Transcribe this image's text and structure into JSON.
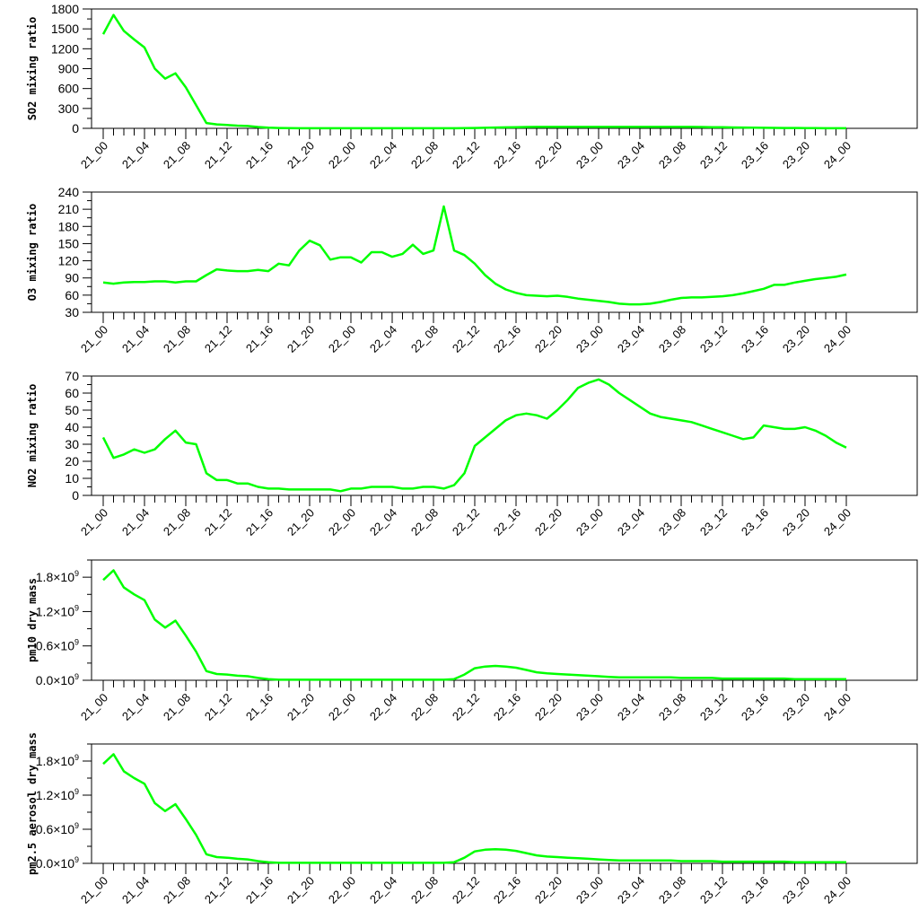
{
  "colors": {
    "line": "#00ff00",
    "axis": "#000000",
    "background": "#ffffff"
  },
  "x_tick_labels": [
    "21_00",
    "21_04",
    "21_08",
    "21_12",
    "21_16",
    "21_20",
    "22_00",
    "22_04",
    "22_08",
    "22_12",
    "22_16",
    "22_20",
    "23_00",
    "23_04",
    "23_08",
    "23_12",
    "23_16",
    "23_20",
    "24_00"
  ],
  "chart_data": [
    {
      "type": "line",
      "ylabel": "SO2 mixing ratio",
      "ylim": [
        0,
        1800
      ],
      "yticks": [
        "0",
        "300",
        "600",
        "900",
        "1200",
        "1500",
        "1800"
      ],
      "x_hours": [
        0,
        1,
        2,
        3,
        4,
        5,
        6,
        7,
        8,
        9,
        10,
        11,
        12,
        13,
        14,
        15,
        16,
        17,
        18,
        19,
        20,
        21,
        22,
        23,
        24,
        25,
        26,
        27,
        28,
        29,
        30,
        31,
        32,
        33,
        34,
        35,
        36,
        37,
        38,
        39,
        40,
        41,
        42,
        43,
        44,
        45,
        46,
        47,
        48,
        49,
        50,
        51,
        52,
        53,
        54,
        55,
        56,
        57,
        58,
        59,
        60,
        61,
        62,
        63,
        64,
        65,
        66,
        67,
        68,
        69,
        70,
        71,
        72
      ],
      "series": [
        {
          "values": [
            1420,
            1710,
            1470,
            1340,
            1220,
            900,
            750,
            830,
            620,
            350,
            80,
            60,
            50,
            40,
            35,
            20,
            10,
            5,
            3,
            2,
            2,
            2,
            2,
            2,
            2,
            2,
            2,
            2,
            2,
            2,
            2,
            2,
            2,
            2,
            2,
            3,
            5,
            8,
            12,
            15,
            18,
            20,
            22,
            22,
            22,
            22,
            22,
            22,
            22,
            22,
            22,
            22,
            22,
            22,
            22,
            22,
            22,
            22,
            20,
            18,
            16,
            14,
            12,
            10,
            8,
            7,
            6,
            5,
            4,
            3,
            2,
            2,
            2
          ]
        }
      ]
    },
    {
      "type": "line",
      "ylabel": "O3 mixing ratio",
      "ylim": [
        30,
        240
      ],
      "yticks": [
        "30",
        "60",
        "90",
        "120",
        "150",
        "180",
        "210",
        "240"
      ],
      "x_hours": [
        0,
        1,
        2,
        3,
        4,
        5,
        6,
        7,
        8,
        9,
        10,
        11,
        12,
        13,
        14,
        15,
        16,
        17,
        18,
        19,
        20,
        21,
        22,
        23,
        24,
        25,
        26,
        27,
        28,
        29,
        30,
        31,
        32,
        33,
        34,
        35,
        36,
        37,
        38,
        39,
        40,
        41,
        42,
        43,
        44,
        45,
        46,
        47,
        48,
        49,
        50,
        51,
        52,
        53,
        54,
        55,
        56,
        57,
        58,
        59,
        60,
        61,
        62,
        63,
        64,
        65,
        66,
        67,
        68,
        69,
        70,
        71,
        72
      ],
      "series": [
        {
          "values": [
            82,
            80,
            82,
            83,
            83,
            84,
            84,
            82,
            84,
            84,
            95,
            105,
            103,
            102,
            102,
            104,
            102,
            115,
            112,
            138,
            155,
            147,
            122,
            126,
            126,
            117,
            135,
            135,
            127,
            132,
            148,
            132,
            138,
            215,
            138,
            130,
            115,
            95,
            80,
            70,
            64,
            60,
            59,
            58,
            59,
            57,
            54,
            52,
            50,
            48,
            45,
            44,
            44,
            45,
            48,
            52,
            55,
            56,
            56,
            57,
            58,
            60,
            63,
            67,
            71,
            78,
            78,
            82,
            85,
            88,
            90,
            92,
            96
          ]
        }
      ]
    },
    {
      "type": "line",
      "ylabel": "NO2 mixing ratio",
      "ylim": [
        0,
        70
      ],
      "yticks": [
        "0",
        "10",
        "20",
        "30",
        "40",
        "50",
        "60",
        "70"
      ],
      "x_hours": [
        0,
        1,
        2,
        3,
        4,
        5,
        6,
        7,
        8,
        9,
        10,
        11,
        12,
        13,
        14,
        15,
        16,
        17,
        18,
        19,
        20,
        21,
        22,
        23,
        24,
        25,
        26,
        27,
        28,
        29,
        30,
        31,
        32,
        33,
        34,
        35,
        36,
        37,
        38,
        39,
        40,
        41,
        42,
        43,
        44,
        45,
        46,
        47,
        48,
        49,
        50,
        51,
        52,
        53,
        54,
        55,
        56,
        57,
        58,
        59,
        60,
        61,
        62,
        63,
        64,
        65,
        66,
        67,
        68,
        69,
        70,
        71,
        72
      ],
      "series": [
        {
          "values": [
            34,
            22,
            24,
            27,
            25,
            27,
            33,
            38,
            31,
            30,
            13,
            9,
            9,
            7,
            7,
            5,
            4,
            4,
            3.5,
            3.5,
            3.5,
            3.5,
            3.5,
            2.5,
            4,
            4,
            5,
            5,
            5,
            4,
            4,
            5,
            5,
            4,
            6,
            13,
            29,
            34,
            39,
            44,
            47,
            48,
            47,
            45,
            50,
            56,
            63,
            66,
            68,
            65,
            60,
            56,
            52,
            48,
            46,
            45,
            44,
            43,
            41,
            39,
            37,
            35,
            33,
            34,
            41,
            40,
            39,
            39,
            40,
            38,
            35,
            31,
            28
          ]
        }
      ]
    },
    {
      "type": "line",
      "ylabel": "pm10 dry mass",
      "ylim": [
        0,
        2.1
      ],
      "ytick_multiplier": "×10",
      "ytick_exponent": "9",
      "yticks": [
        "0.0",
        "0.6",
        "1.2",
        "1.8"
      ],
      "x_hours": [
        0,
        1,
        2,
        3,
        4,
        5,
        6,
        7,
        8,
        9,
        10,
        11,
        12,
        13,
        14,
        15,
        16,
        17,
        18,
        19,
        20,
        21,
        22,
        23,
        24,
        25,
        26,
        27,
        28,
        29,
        30,
        31,
        32,
        33,
        34,
        35,
        36,
        37,
        38,
        39,
        40,
        41,
        42,
        43,
        44,
        45,
        46,
        47,
        48,
        49,
        50,
        51,
        52,
        53,
        54,
        55,
        56,
        57,
        58,
        59,
        60,
        61,
        62,
        63,
        64,
        65,
        66,
        67,
        68,
        69,
        70,
        71,
        72
      ],
      "series": [
        {
          "values": [
            1.75,
            1.92,
            1.62,
            1.5,
            1.4,
            1.06,
            0.92,
            1.04,
            0.78,
            0.5,
            0.16,
            0.11,
            0.1,
            0.08,
            0.07,
            0.04,
            0.02,
            0.01,
            0.01,
            0.01,
            0.01,
            0.01,
            0.01,
            0.01,
            0.01,
            0.01,
            0.01,
            0.01,
            0.01,
            0.01,
            0.01,
            0.01,
            0.01,
            0.01,
            0.02,
            0.1,
            0.21,
            0.24,
            0.25,
            0.24,
            0.22,
            0.18,
            0.14,
            0.12,
            0.11,
            0.1,
            0.09,
            0.08,
            0.07,
            0.06,
            0.05,
            0.05,
            0.05,
            0.05,
            0.05,
            0.05,
            0.04,
            0.04,
            0.04,
            0.04,
            0.03,
            0.03,
            0.03,
            0.03,
            0.03,
            0.03,
            0.03,
            0.02,
            0.02,
            0.02,
            0.02,
            0.02,
            0.02
          ]
        }
      ]
    },
    {
      "type": "line",
      "ylabel": "pm2.5 aerosol dry mass",
      "ylim": [
        0,
        2.1
      ],
      "ytick_multiplier": "×10",
      "ytick_exponent": "9",
      "yticks": [
        "0.0",
        "0.6",
        "1.2",
        "1.8"
      ],
      "x_hours": [
        0,
        1,
        2,
        3,
        4,
        5,
        6,
        7,
        8,
        9,
        10,
        11,
        12,
        13,
        14,
        15,
        16,
        17,
        18,
        19,
        20,
        21,
        22,
        23,
        24,
        25,
        26,
        27,
        28,
        29,
        30,
        31,
        32,
        33,
        34,
        35,
        36,
        37,
        38,
        39,
        40,
        41,
        42,
        43,
        44,
        45,
        46,
        47,
        48,
        49,
        50,
        51,
        52,
        53,
        54,
        55,
        56,
        57,
        58,
        59,
        60,
        61,
        62,
        63,
        64,
        65,
        66,
        67,
        68,
        69,
        70,
        71,
        72
      ],
      "series": [
        {
          "values": [
            1.75,
            1.92,
            1.62,
            1.5,
            1.4,
            1.06,
            0.92,
            1.04,
            0.78,
            0.5,
            0.16,
            0.11,
            0.1,
            0.08,
            0.07,
            0.04,
            0.02,
            0.01,
            0.01,
            0.01,
            0.01,
            0.01,
            0.01,
            0.01,
            0.01,
            0.01,
            0.01,
            0.01,
            0.01,
            0.01,
            0.01,
            0.01,
            0.01,
            0.01,
            0.02,
            0.1,
            0.21,
            0.24,
            0.25,
            0.24,
            0.22,
            0.18,
            0.14,
            0.12,
            0.11,
            0.1,
            0.09,
            0.08,
            0.07,
            0.06,
            0.05,
            0.05,
            0.05,
            0.05,
            0.05,
            0.05,
            0.04,
            0.04,
            0.04,
            0.04,
            0.03,
            0.03,
            0.03,
            0.03,
            0.03,
            0.03,
            0.03,
            0.02,
            0.02,
            0.02,
            0.02,
            0.02,
            0.02
          ]
        }
      ]
    }
  ]
}
